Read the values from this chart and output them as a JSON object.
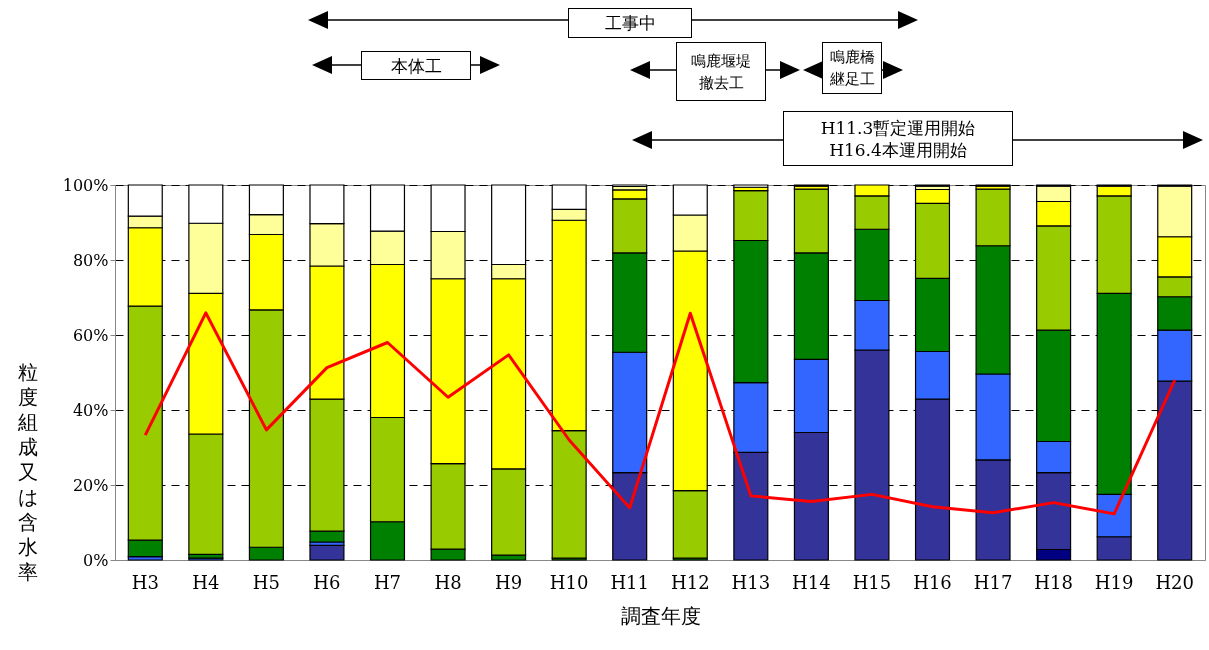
{
  "chart_data": {
    "type": "bar",
    "stacked": true,
    "xlabel": "調査年度",
    "ylabel": "粒度組成又は含水率",
    "categories": [
      "H3",
      "H4",
      "H5",
      "H6",
      "H7",
      "H8",
      "H9",
      "H10",
      "H11",
      "H12",
      "H13",
      "H14",
      "H15",
      "H16",
      "H17",
      "H18",
      "H19",
      "H20"
    ],
    "ylim": [
      0,
      100
    ],
    "yticks": [
      {
        "value": 0,
        "label": "0%"
      },
      {
        "value": 20,
        "label": "20%"
      },
      {
        "value": 40,
        "label": "40%"
      },
      {
        "value": 60,
        "label": "60%"
      },
      {
        "value": 80,
        "label": "80%"
      },
      {
        "value": 100,
        "label": "100%"
      }
    ],
    "grid": "y",
    "legend": false,
    "annotations": [
      "工事中",
      "本体工",
      "鳴鹿堰堤撤去工",
      "鳴鹿橋継足工",
      "H11.3暫定運用開始\nH16.4本運用開始"
    ],
    "series": [
      {
        "color": "#000080",
        "values": [
          null,
          null,
          null,
          null,
          null,
          null,
          null,
          null,
          null,
          null,
          null,
          null,
          null,
          null,
          null,
          2.8,
          null,
          null
        ]
      },
      {
        "color": "#333399",
        "values": [
          null,
          null,
          null,
          3.9,
          null,
          null,
          null,
          null,
          23.3,
          null,
          28.7,
          34.0,
          56.0,
          42.9,
          26.7,
          20.5,
          6.2,
          47.7
        ]
      },
      {
        "color": "#3366ff",
        "values": [
          0.9,
          0.5,
          null,
          0.9,
          null,
          null,
          null,
          null,
          32.1,
          null,
          18.6,
          19.5,
          13.2,
          12.7,
          22.9,
          8.3,
          11.3,
          13.6
        ]
      },
      {
        "color": "#008000",
        "values": [
          4.4,
          1.0,
          3.4,
          2.9,
          10.2,
          2.9,
          1.3,
          0.5,
          26.5,
          0.5,
          37.9,
          28.4,
          19.0,
          19.5,
          34.2,
          29.7,
          53.6,
          8.9
        ]
      },
      {
        "color": "#99cc00",
        "values": [
          62.4,
          32.1,
          63.3,
          35.2,
          27.8,
          22.8,
          23.0,
          34.0,
          14.4,
          18.0,
          13.3,
          17.0,
          8.9,
          20.0,
          15.1,
          27.8,
          26.0,
          5.3
        ]
      },
      {
        "color": "#ffff00",
        "values": [
          20.9,
          37.5,
          20.1,
          35.5,
          40.8,
          49.3,
          50.7,
          56.1,
          2.4,
          63.9,
          0.9,
          0.8,
          2.9,
          3.7,
          0.8,
          6.5,
          2.6,
          10.7
        ]
      },
      {
        "color": "#ffff99",
        "values": [
          3.1,
          18.7,
          5.3,
          11.3,
          8.9,
          12.6,
          3.8,
          2.9,
          0.9,
          9.6,
          null,
          0.3,
          null,
          0.9,
          0.3,
          4.1,
          null,
          13.5
        ]
      },
      {
        "color": "#ffffff",
        "values": [
          8.3,
          10.2,
          7.9,
          10.3,
          12.3,
          12.4,
          21.2,
          6.5,
          0.4,
          8.0,
          0.6,
          null,
          null,
          0.3,
          null,
          0.3,
          0.3,
          0.3
        ]
      },
      {
        "type": "line",
        "color": "#ff0000",
        "values": [
          33.3,
          65.9,
          34.7,
          51.3,
          58.0,
          43.4,
          54.7,
          32.0,
          13.9,
          65.8,
          17.1,
          15.6,
          17.5,
          14.2,
          12.6,
          15.3,
          12.3,
          48.0
        ]
      }
    ]
  }
}
